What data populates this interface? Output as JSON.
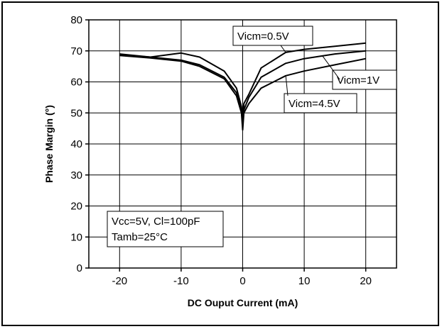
{
  "chart_data": {
    "type": "line",
    "title": "",
    "xlabel": "DC Ouput Current (mA)",
    "ylabel": "Phase Margin (°)",
    "xlim": [
      -25,
      25
    ],
    "ylim": [
      0,
      80
    ],
    "x_ticks": [
      -20,
      -10,
      0,
      10,
      20
    ],
    "x_tick_labels": [
      "-20",
      "-10",
      "0",
      "10",
      "20"
    ],
    "y_ticks": [
      0,
      10,
      20,
      30,
      40,
      50,
      60,
      70,
      80
    ],
    "y_tick_labels": [
      "0",
      "10",
      "20",
      "30",
      "40",
      "50",
      "60",
      "70",
      "80"
    ],
    "grid": true,
    "series": [
      {
        "name": "Vicm=0.5V",
        "points": [
          [
            -20,
            69
          ],
          [
            -15,
            68
          ],
          [
            -10,
            69.3
          ],
          [
            -7,
            68
          ],
          [
            -3,
            63.5
          ],
          [
            -1,
            58
          ],
          [
            -0.2,
            52
          ],
          [
            0,
            47
          ],
          [
            0.2,
            53
          ],
          [
            1,
            56
          ],
          [
            3,
            64.5
          ],
          [
            7,
            69.5
          ],
          [
            10,
            70.5
          ],
          [
            15,
            71.5
          ],
          [
            20,
            72.5
          ]
        ]
      },
      {
        "name": "Vicm=1V",
        "points": [
          [
            -20,
            68.7
          ],
          [
            -15,
            68
          ],
          [
            -10,
            67
          ],
          [
            -7,
            65.5
          ],
          [
            -3,
            61.5
          ],
          [
            -1,
            56.5
          ],
          [
            -0.2,
            51
          ],
          [
            0,
            46
          ],
          [
            0.2,
            51
          ],
          [
            1,
            55
          ],
          [
            3,
            61.5
          ],
          [
            7,
            66
          ],
          [
            10,
            67.5
          ],
          [
            15,
            69
          ],
          [
            20,
            70
          ]
        ]
      },
      {
        "name": "Vicm=4.5V",
        "points": [
          [
            -20,
            68.5
          ],
          [
            -15,
            67.7
          ],
          [
            -10,
            66.7
          ],
          [
            -7,
            65
          ],
          [
            -3,
            61
          ],
          [
            -1,
            55.5
          ],
          [
            -0.2,
            50
          ],
          [
            0,
            44.5
          ],
          [
            0.2,
            50
          ],
          [
            1,
            53
          ],
          [
            3,
            58
          ],
          [
            7,
            62
          ],
          [
            10,
            63.5
          ],
          [
            15,
            65.5
          ],
          [
            20,
            67.5
          ]
        ]
      }
    ],
    "annotations": [
      {
        "text": "Vicm=0.5V",
        "arrow_to": [
          7,
          69.5
        ]
      },
      {
        "text": "Vicm=1V",
        "arrow_to": [
          13,
          68.3
        ]
      },
      {
        "text": "Vicm=4.5V",
        "arrow_to": [
          7,
          62
        ]
      }
    ],
    "conditions": [
      "Vcc=5V, Cl=100pF",
      "Tamb=25°C"
    ],
    "colors": {
      "line": "#000000",
      "grid": "#000000",
      "background": "#ffffff"
    }
  }
}
